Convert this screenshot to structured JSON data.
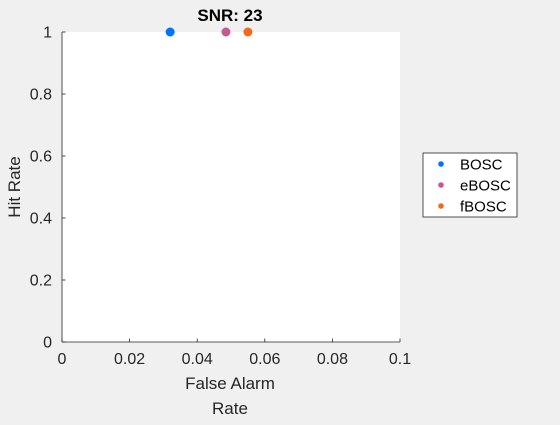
{
  "chart_data": {
    "type": "scatter",
    "title": "SNR: 23",
    "xlabel": [
      "False Alarm",
      "Rate"
    ],
    "ylabel": "Hit Rate",
    "xlim": [
      0,
      0.1
    ],
    "ylim": [
      0,
      1
    ],
    "xticks": [
      0,
      0.02,
      0.04,
      0.06,
      0.08,
      0.1
    ],
    "xtick_labels": [
      "0",
      "0.02",
      "0.04",
      "0.06",
      "0.08",
      "0.1"
    ],
    "yticks": [
      0,
      0.2,
      0.4,
      0.6,
      0.8,
      1
    ],
    "ytick_labels": [
      "0",
      "0.2",
      "0.4",
      "0.6",
      "0.8",
      "1"
    ],
    "grid": false,
    "legend_position": "outside-right",
    "series": [
      {
        "name": "BOSC",
        "color": "#0072ff",
        "points": [
          {
            "x": 0.032,
            "y": 1
          }
        ]
      },
      {
        "name": "eBOSC",
        "color": "#c9578f",
        "points": [
          {
            "x": 0.0485,
            "y": 1
          }
        ]
      },
      {
        "name": "fBOSC",
        "color": "#f06a1b",
        "points": [
          {
            "x": 0.055,
            "y": 1
          }
        ]
      }
    ]
  }
}
